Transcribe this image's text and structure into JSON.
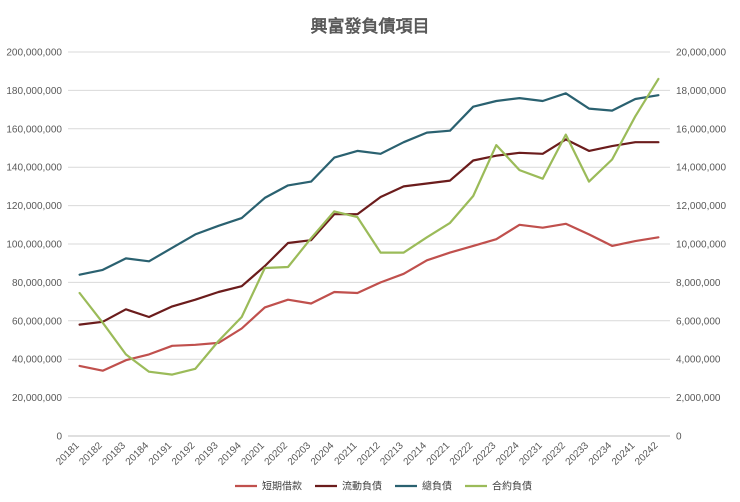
{
  "chart_data": {
    "type": "line",
    "title": "興富發負債項目",
    "xlabel": "",
    "ylabel": "",
    "grid": true,
    "legend_position": "bottom",
    "x": [
      "20181",
      "20182",
      "20183",
      "20184",
      "20191",
      "20192",
      "20193",
      "20194",
      "20201",
      "20202",
      "20203",
      "20204",
      "20211",
      "20212",
      "20213",
      "20214",
      "20221",
      "20222",
      "20223",
      "20224",
      "20231",
      "20232",
      "20233",
      "20234",
      "20241",
      "20242"
    ],
    "y_left": {
      "min": 0,
      "max": 200000000,
      "step": 20000000,
      "tick_labels": [
        "0",
        "20,000,000",
        "40,000,000",
        "60,000,000",
        "80,000,000",
        "100,000,000",
        "120,000,000",
        "140,000,000",
        "160,000,000",
        "180,000,000",
        "200,000,000"
      ]
    },
    "y_right": {
      "min": 0,
      "max": 20000000,
      "step": 2000000,
      "tick_labels": [
        "0",
        "2,000,000",
        "4,000,000",
        "6,000,000",
        "8,000,000",
        "10,000,000",
        "12,000,000",
        "14,000,000",
        "16,000,000",
        "18,000,000",
        "20,000,000"
      ]
    },
    "series": [
      {
        "name": "短期借款",
        "axis": "left",
        "color": "#c0504d",
        "values": [
          36500000,
          34000000,
          39500000,
          42500000,
          47000000,
          47500000,
          48500000,
          56000000,
          67000000,
          71000000,
          69000000,
          75000000,
          74500000,
          80000000,
          84500000,
          91500000,
          95500000,
          99000000,
          102500000,
          110000000,
          108500000,
          110500000,
          105000000,
          99000000,
          101500000,
          103500000
        ]
      },
      {
        "name": "流動負債",
        "axis": "left",
        "color": "#6b1c1c",
        "values": [
          58000000,
          59500000,
          66000000,
          62000000,
          67500000,
          71000000,
          75000000,
          78000000,
          88500000,
          100500000,
          102000000,
          115500000,
          115500000,
          124500000,
          130000000,
          131500000,
          133000000,
          143500000,
          146000000,
          147500000,
          147000000,
          154500000,
          148500000,
          151000000,
          153000000,
          153000000
        ]
      },
      {
        "name": "總負債",
        "axis": "left",
        "color": "#2a6170",
        "values": [
          84000000,
          86500000,
          92500000,
          91000000,
          98000000,
          105000000,
          109500000,
          113500000,
          124000000,
          130500000,
          132500000,
          145000000,
          148500000,
          147000000,
          153000000,
          158000000,
          159000000,
          171500000,
          174500000,
          176000000,
          174500000,
          178500000,
          170500000,
          169500000,
          175500000,
          177500000
        ]
      },
      {
        "name": "合約負債",
        "axis": "right",
        "color": "#9bbb59",
        "values": [
          7450000,
          5900000,
          4250000,
          3350000,
          3200000,
          3500000,
          4950000,
          6200000,
          8750000,
          8800000,
          10300000,
          11700000,
          11400000,
          9550000,
          9550000,
          10350000,
          11100000,
          12500000,
          15150000,
          13850000,
          13400000,
          15700000,
          13250000,
          14400000,
          16650000,
          18600000
        ]
      }
    ]
  }
}
